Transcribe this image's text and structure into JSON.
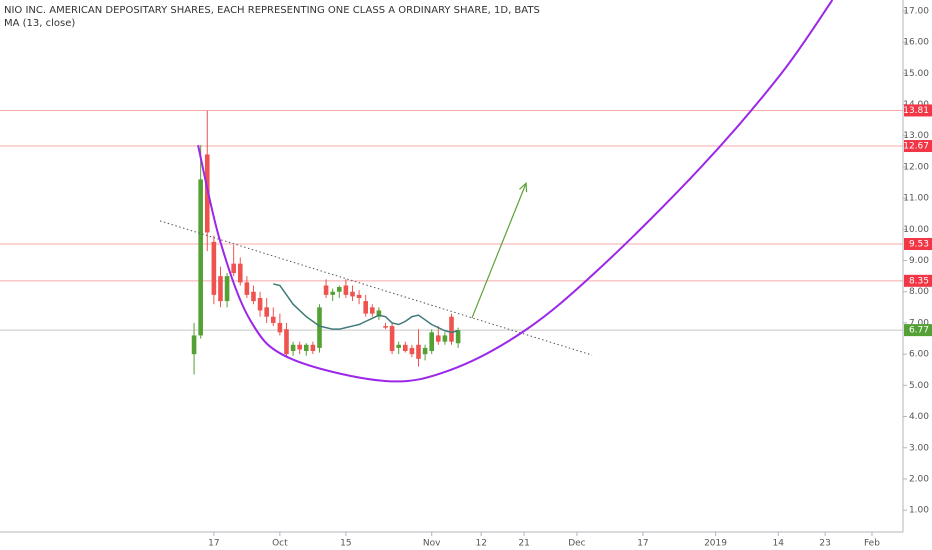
{
  "chart_data": {
    "type": "candlestick",
    "title": "NIO INC. AMERICAN DEPOSITARY SHARES, EACH REPRESENTING ONE CLASS A ORDINARY SHARE, 1D, BATS",
    "x": [
      0,
      1,
      2,
      3,
      4,
      5,
      6,
      7,
      8,
      9,
      10,
      11,
      12,
      13,
      14,
      15,
      16,
      17,
      18,
      19,
      20,
      21,
      22,
      23,
      24,
      25,
      26,
      27,
      28,
      29,
      30,
      31,
      32,
      33,
      34,
      35,
      36,
      37,
      38,
      39,
      40
    ],
    "open": [
      6.0,
      6.6,
      12.4,
      9.6,
      8.5,
      7.7,
      8.9,
      8.9,
      8.3,
      8.0,
      7.8,
      7.5,
      7.2,
      7.0,
      6.8,
      6.1,
      6.3,
      6.1,
      6.3,
      6.2,
      8.2,
      7.9,
      8.0,
      8.2,
      8.0,
      7.9,
      7.7,
      7.5,
      7.2,
      6.9,
      6.9,
      6.2,
      6.3,
      6.2,
      6.3,
      6.0,
      6.1,
      6.6,
      6.4,
      7.2,
      6.35
    ],
    "high": [
      7.0,
      12.7,
      13.81,
      9.8,
      8.8,
      8.6,
      9.5,
      9.1,
      8.5,
      8.2,
      8.0,
      7.8,
      7.5,
      7.3,
      7.0,
      6.4,
      6.4,
      6.35,
      6.4,
      7.6,
      8.4,
      8.1,
      8.2,
      8.4,
      8.2,
      8.05,
      7.9,
      7.6,
      7.5,
      7.0,
      7.0,
      6.4,
      6.4,
      6.3,
      6.8,
      6.3,
      6.8,
      6.9,
      6.7,
      7.3,
      6.85
    ],
    "low": [
      5.35,
      6.5,
      9.3,
      7.6,
      7.5,
      7.5,
      8.5,
      8.2,
      7.8,
      7.6,
      7.2,
      7.0,
      6.9,
      6.6,
      5.9,
      5.95,
      6.0,
      5.95,
      6.0,
      6.05,
      7.8,
      7.7,
      7.8,
      7.8,
      7.7,
      7.6,
      7.2,
      7.2,
      7.1,
      6.8,
      6.0,
      6.0,
      6.05,
      5.9,
      5.6,
      5.8,
      6.0,
      6.3,
      6.3,
      6.3,
      6.2
    ],
    "close": [
      6.6,
      11.6,
      9.9,
      7.9,
      7.7,
      8.5,
      8.6,
      8.3,
      7.9,
      7.7,
      7.4,
      7.2,
      7.0,
      6.7,
      6.0,
      6.3,
      6.15,
      6.3,
      6.1,
      7.5,
      7.9,
      8.0,
      8.15,
      7.9,
      7.85,
      7.8,
      7.3,
      7.3,
      7.4,
      6.85,
      6.1,
      6.3,
      6.1,
      6.0,
      5.85,
      6.2,
      6.7,
      6.4,
      6.6,
      6.4,
      6.77
    ],
    "up_color": "#53a134",
    "down_color": "#ef5350",
    "ma": {
      "name": "MA (13, close)",
      "color": "#3e7a78",
      "values": [
        null,
        null,
        null,
        null,
        null,
        null,
        null,
        null,
        null,
        null,
        null,
        null,
        8.25,
        8.2,
        7.9,
        7.6,
        7.4,
        7.2,
        7.05,
        6.9,
        6.85,
        6.8,
        6.8,
        6.85,
        6.9,
        6.95,
        7.05,
        7.15,
        7.25,
        7.2,
        7.0,
        6.95,
        7.05,
        7.2,
        7.25,
        7.1,
        6.95,
        6.85,
        6.75,
        6.7,
        6.75
      ]
    },
    "levels": [
      {
        "value": 13.81,
        "color": "#f23645",
        "line_color": "#f7a8a8"
      },
      {
        "value": 12.67,
        "color": "#f23645",
        "line_color": "#f7a8a8"
      },
      {
        "value": 9.53,
        "color": "#f23645",
        "line_color": "#f7a8a8"
      },
      {
        "value": 8.35,
        "color": "#f23645",
        "line_color": "#f7a8a8"
      },
      {
        "value": 6.77,
        "color": "#53a134",
        "line_color": "#c8c8c8"
      }
    ],
    "trendline": {
      "x": [
        -5.15,
        60.3
      ],
      "y": [
        10.27,
        5.97
      ],
      "color": "#555555"
    },
    "arrow": {
      "x": [
        42.1,
        50.3
      ],
      "y": [
        7.16,
        11.48
      ],
      "color": "#5ca33c"
    },
    "cup": {
      "x": [
        0.6,
        3.9,
        8.5,
        14.5,
        28.9,
        38.8,
        50.2,
        61.5,
        76.7,
        88.8,
        96.7
      ],
      "y": [
        12.7,
        9.66,
        7.09,
        5.87,
        5.14,
        5.49,
        6.77,
        8.76,
        11.97,
        14.95,
        17.35
      ],
      "color": "#9c27e8"
    },
    "xlim": [
      -29.4,
      107.4
    ],
    "ylim": [
      0.3,
      17.35
    ],
    "xticks": [
      {
        "value": 3,
        "label": "17"
      },
      {
        "value": 13,
        "label": "Oct"
      },
      {
        "value": 23,
        "label": "15"
      },
      {
        "value": 36,
        "label": "Nov"
      },
      {
        "value": 43.5,
        "label": "12"
      },
      {
        "value": 50,
        "label": "21"
      },
      {
        "value": 58,
        "label": "Dec"
      },
      {
        "value": 68,
        "label": "17"
      },
      {
        "value": 79,
        "label": "2019"
      },
      {
        "value": 88.5,
        "label": "14"
      },
      {
        "value": 95.6,
        "label": "23"
      },
      {
        "value": 102.7,
        "label": "Feb"
      }
    ],
    "yticks": [
      {
        "value": 1,
        "label": "1.00"
      },
      {
        "value": 2,
        "label": "2.00"
      },
      {
        "value": 3,
        "label": "3.00"
      },
      {
        "value": 4,
        "label": "4.00"
      },
      {
        "value": 5,
        "label": "5.00"
      },
      {
        "value": 6,
        "label": "6.00"
      },
      {
        "value": 7,
        "label": "7.00"
      },
      {
        "value": 8,
        "label": "8.00"
      },
      {
        "value": 9,
        "label": "9.00"
      },
      {
        "value": 10,
        "label": "10.00"
      },
      {
        "value": 11,
        "label": "11.00"
      },
      {
        "value": 12,
        "label": "12.00"
      },
      {
        "value": 13,
        "label": "13.00"
      },
      {
        "value": 14,
        "label": "14.00"
      },
      {
        "value": 15,
        "label": "15.00"
      },
      {
        "value": 16,
        "label": "16.00"
      },
      {
        "value": 17,
        "label": "17.00"
      }
    ]
  }
}
